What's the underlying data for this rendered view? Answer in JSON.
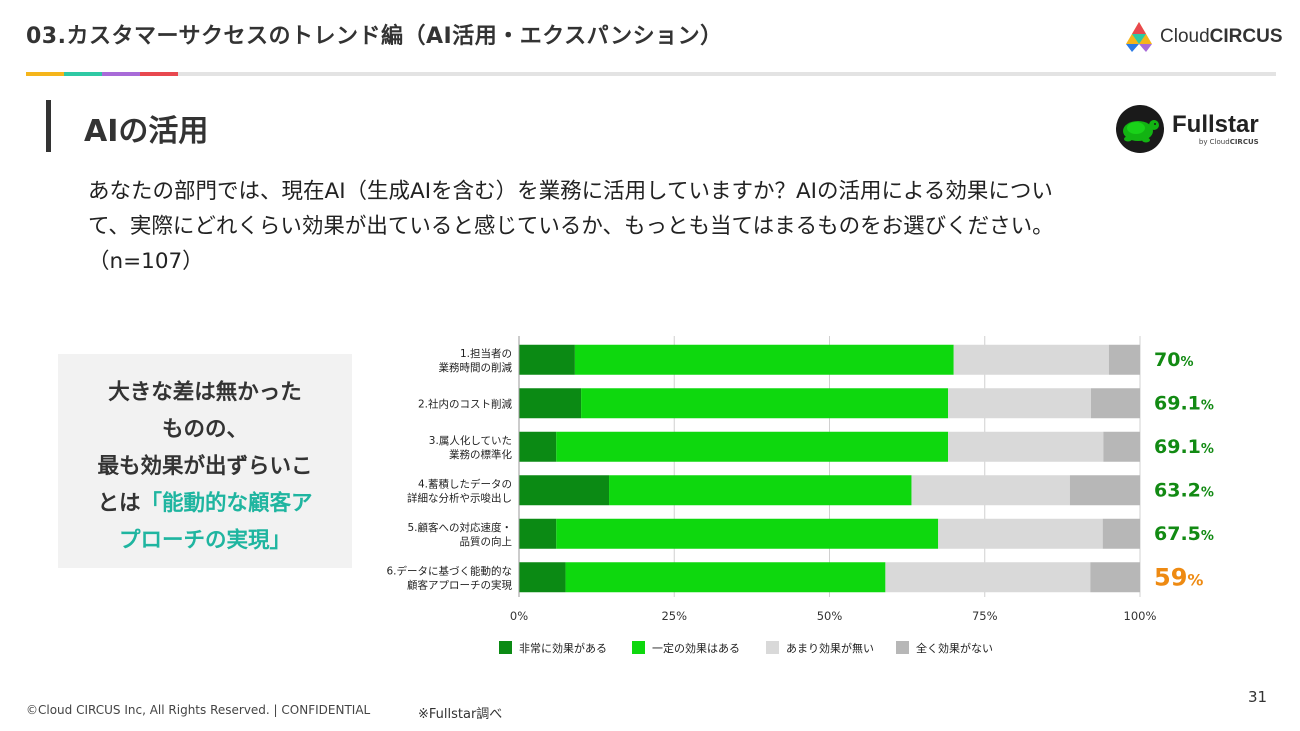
{
  "header": {
    "title": "03.カスタマーサクセスのトレンド編（AI活用・エクスパンション）",
    "accent_colors": [
      "#f5b51b",
      "#2ec9a4",
      "#a86bd8",
      "#e8484f"
    ]
  },
  "brand": {
    "name_light": "Cloud",
    "name_bold": "CIRCUS",
    "icon": "cloudcircus-logo-icon"
  },
  "section": {
    "title": "AIの活用"
  },
  "fullstar": {
    "name": "Fullstar",
    "sub_light": "by Cloud",
    "sub_bold": "CIRCUS",
    "icon": "turtle-logo-icon"
  },
  "question": {
    "line1": "あなたの部門では、現在AI（生成AIを含む）を業務に活用していますか？AIの活用による効果につい",
    "line2": "て、実際にどれくらい効果が出ていると感じているか、もっとも当てはまるものをお選びください。",
    "line3": "（n=107）"
  },
  "callout": {
    "line1": "大きな差は無かった",
    "line2": "ものの、",
    "line3": "最も効果が出ずらいこ",
    "line4a": "とは",
    "line4b": "「能動的な顧客ア",
    "line5": "プローチの実現」"
  },
  "chart_data": {
    "type": "bar",
    "orientation": "horizontal",
    "stacked": true,
    "categories": [
      [
        "1.担当者の",
        "業務時間の削減"
      ],
      [
        "2.社内のコスト削減"
      ],
      [
        "3.属人化していた",
        "業務の標準化"
      ],
      [
        "4.蓄積したデータの",
        "詳細な分析や示唆出し"
      ],
      [
        "5.顧客への対応速度・",
        "品質の向上"
      ],
      [
        "6.データに基づく能動的な",
        "顧客アプローチの実現"
      ]
    ],
    "series": [
      {
        "name": "非常に効果がある",
        "color": "#0b8a14",
        "values": [
          9,
          10,
          6,
          14.5,
          6,
          7.5
        ]
      },
      {
        "name": "一定の効果はある",
        "color": "#0ed80e",
        "values": [
          61,
          59.1,
          63.1,
          48.7,
          61.5,
          51.5
        ]
      },
      {
        "name": "あまり効果が無い",
        "color": "#d9d9d9",
        "values": [
          25,
          23,
          25,
          25.5,
          26.5,
          33
        ]
      },
      {
        "name": "全く効果がない",
        "color": "#b7b7b7",
        "values": [
          5,
          7.9,
          5.9,
          11.3,
          6,
          8
        ]
      }
    ],
    "totals": [
      {
        "value": "70",
        "unit": "%",
        "color": "#128a13"
      },
      {
        "value": "69.1",
        "unit": "%",
        "color": "#128a13"
      },
      {
        "value": "69.1",
        "unit": "%",
        "color": "#128a13"
      },
      {
        "value": "63.2",
        "unit": "%",
        "color": "#128a13"
      },
      {
        "value": "67.5",
        "unit": "%",
        "color": "#128a13"
      },
      {
        "value": "59",
        "unit": "%",
        "color": "#ee8a12"
      }
    ],
    "xlim": [
      0,
      100
    ],
    "xticks": [
      0,
      25,
      50,
      75,
      100
    ],
    "xtick_labels": [
      "0%",
      "25%",
      "50%",
      "75%",
      "100%"
    ],
    "grid": true,
    "legend_position": "bottom"
  },
  "footer": {
    "copyright": "©Cloud CIRCUS Inc, All Rights Reserved. | CONFIDENTIAL",
    "source": "※Fullstar調べ",
    "page": "31"
  }
}
